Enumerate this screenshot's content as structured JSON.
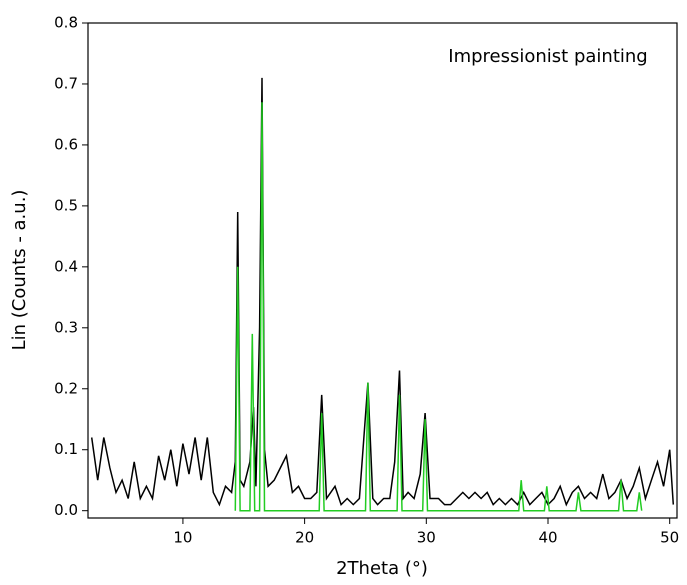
{
  "chart_data": {
    "type": "line",
    "annotation": "Impressionist painting",
    "xlabel": "2Theta (°)",
    "ylabel": "Lin (Counts - a.u.)",
    "xlim": [
      2.2,
      50.6
    ],
    "ylim": [
      -0.012,
      0.8
    ],
    "xticks": [
      10,
      20,
      30,
      40,
      50
    ],
    "yticks": [
      {
        "value": 0,
        "label": "0.0"
      },
      {
        "value": 0.1,
        "label": "0.1"
      },
      {
        "value": 0.2,
        "label": "0.2"
      },
      {
        "value": 0.3,
        "label": "0.3"
      },
      {
        "value": 0.4,
        "label": "0.4"
      },
      {
        "value": 0.5,
        "label": "0.5"
      },
      {
        "value": 0.6,
        "label": "0.6"
      },
      {
        "value": 0.7,
        "label": "0.7"
      },
      {
        "value": 0.8,
        "label": "0.8"
      }
    ],
    "series": [
      {
        "color": "#000000",
        "x": [
          2.5,
          3.0,
          3.5,
          4.0,
          4.5,
          5.0,
          5.5,
          6.0,
          6.5,
          7.0,
          7.5,
          8.0,
          8.5,
          9.0,
          9.5,
          10.0,
          10.5,
          11.0,
          11.5,
          12.0,
          12.5,
          13.0,
          13.5,
          14.0,
          14.3,
          14.5,
          14.7,
          15.0,
          15.5,
          15.8,
          16.0,
          16.3,
          16.5,
          16.7,
          17.0,
          17.5,
          18.0,
          18.5,
          19.0,
          19.5,
          20.0,
          20.5,
          21.0,
          21.4,
          21.8,
          22.5,
          23.0,
          23.5,
          24.0,
          24.5,
          25.2,
          25.6,
          26.0,
          26.5,
          27.0,
          27.4,
          27.8,
          28.1,
          28.5,
          29.0,
          29.5,
          29.9,
          30.3,
          31.0,
          31.5,
          32.0,
          32.5,
          33.0,
          33.5,
          34.0,
          34.5,
          35.0,
          35.5,
          36.0,
          36.5,
          37.0,
          37.5,
          38.0,
          38.5,
          39.0,
          39.5,
          40.0,
          40.5,
          41.0,
          41.5,
          42.0,
          42.5,
          43.0,
          43.5,
          44.0,
          44.5,
          45.0,
          45.5,
          46.0,
          46.5,
          47.0,
          47.5,
          48.0,
          48.5,
          49.0,
          49.5,
          50.0,
          50.3
        ],
        "values": [
          0.12,
          0.05,
          0.12,
          0.07,
          0.03,
          0.05,
          0.02,
          0.08,
          0.02,
          0.04,
          0.02,
          0.09,
          0.05,
          0.1,
          0.04,
          0.11,
          0.06,
          0.12,
          0.05,
          0.12,
          0.03,
          0.01,
          0.04,
          0.03,
          0.08,
          0.49,
          0.05,
          0.04,
          0.08,
          0.17,
          0.04,
          0.3,
          0.71,
          0.1,
          0.04,
          0.05,
          0.07,
          0.09,
          0.03,
          0.04,
          0.02,
          0.02,
          0.03,
          0.19,
          0.02,
          0.04,
          0.01,
          0.02,
          0.01,
          0.02,
          0.21,
          0.02,
          0.01,
          0.02,
          0.02,
          0.08,
          0.23,
          0.02,
          0.03,
          0.02,
          0.06,
          0.16,
          0.02,
          0.02,
          0.01,
          0.01,
          0.02,
          0.03,
          0.02,
          0.03,
          0.02,
          0.03,
          0.01,
          0.02,
          0.01,
          0.02,
          0.01,
          0.03,
          0.01,
          0.02,
          0.03,
          0.01,
          0.02,
          0.04,
          0.01,
          0.03,
          0.04,
          0.02,
          0.03,
          0.02,
          0.06,
          0.02,
          0.03,
          0.05,
          0.02,
          0.04,
          0.07,
          0.02,
          0.05,
          0.08,
          0.04,
          0.1,
          0.01
        ]
      },
      {
        "color": "#22cc22",
        "x": [
          14.3,
          14.5,
          14.7,
          15.5,
          15.7,
          15.9,
          16.3,
          16.5,
          16.7,
          21.2,
          21.4,
          21.6,
          25.0,
          25.2,
          25.4,
          27.6,
          27.8,
          28.0,
          29.7,
          29.9,
          30.1,
          37.6,
          37.8,
          38.0,
          39.7,
          39.9,
          40.1,
          42.3,
          42.5,
          42.7,
          45.8,
          46.0,
          46.2,
          47.3,
          47.5,
          47.7
        ],
        "values": [
          0,
          0.4,
          0,
          0,
          0.29,
          0,
          0,
          0.67,
          0,
          0,
          0.16,
          0,
          0,
          0.21,
          0,
          0,
          0.19,
          0,
          0,
          0.15,
          0,
          0,
          0.05,
          0,
          0,
          0.04,
          0,
          0,
          0.03,
          0,
          0,
          0.05,
          0,
          0,
          0.03,
          0
        ]
      }
    ]
  }
}
